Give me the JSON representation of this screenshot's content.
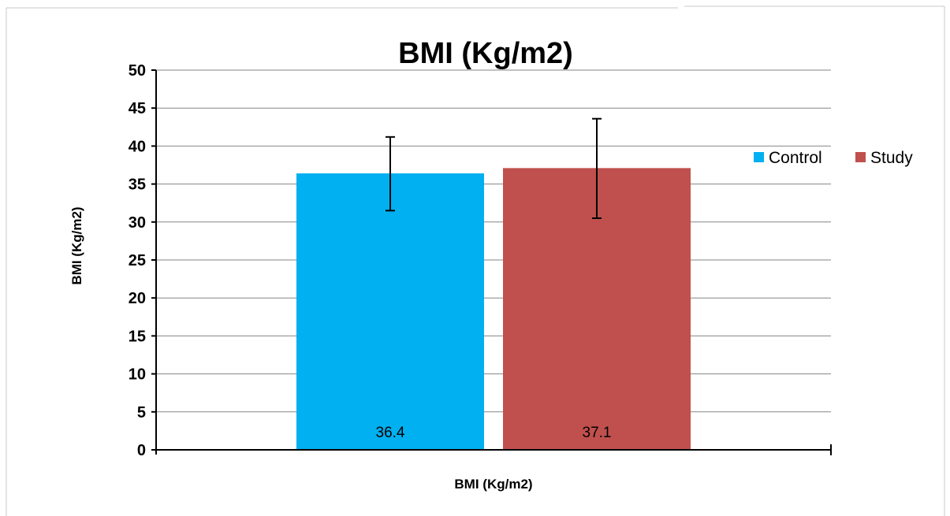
{
  "chart_data": {
    "type": "bar",
    "title": "BMI (Kg/m2)",
    "xlabel": "BMI (Kg/m2)",
    "ylabel": "BMI (Kg/m2)",
    "ylim": [
      0,
      50
    ],
    "yticks": [
      "0",
      "5",
      "10",
      "15",
      "20",
      "25",
      "30",
      "35",
      "40",
      "45",
      "50"
    ],
    "grid": true,
    "legend_position": "right",
    "series": [
      {
        "name": "Control",
        "value": 36.4,
        "label": "36.4",
        "error_low": 31.5,
        "error_high": 41.2,
        "color": "#00B0F0"
      },
      {
        "name": "Study",
        "value": 37.1,
        "label": "37.1",
        "error_low": 30.5,
        "error_high": 43.6,
        "color": "#C0504D"
      }
    ]
  }
}
